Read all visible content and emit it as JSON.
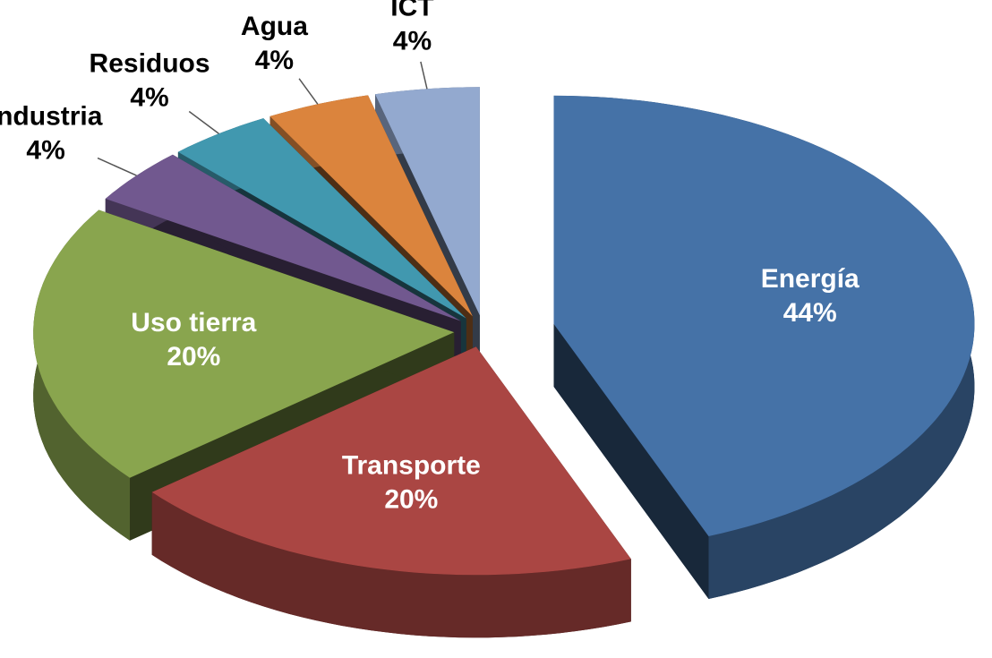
{
  "chart_data": {
    "type": "pie",
    "categories": [
      "Energía",
      "Transporte",
      "Uso tierra",
      "Industria",
      "Residuos",
      "Agua",
      "ICT"
    ],
    "values": [
      44,
      20,
      20,
      4,
      4,
      4,
      4
    ],
    "value_labels": [
      "44%",
      "20%",
      "20%",
      "4%",
      "4%",
      "4%",
      "4%"
    ],
    "colors": [
      "#4572a7",
      "#aa4643",
      "#89a54e",
      "#71588f",
      "#4198af",
      "#db843d",
      "#93a9cf"
    ]
  }
}
